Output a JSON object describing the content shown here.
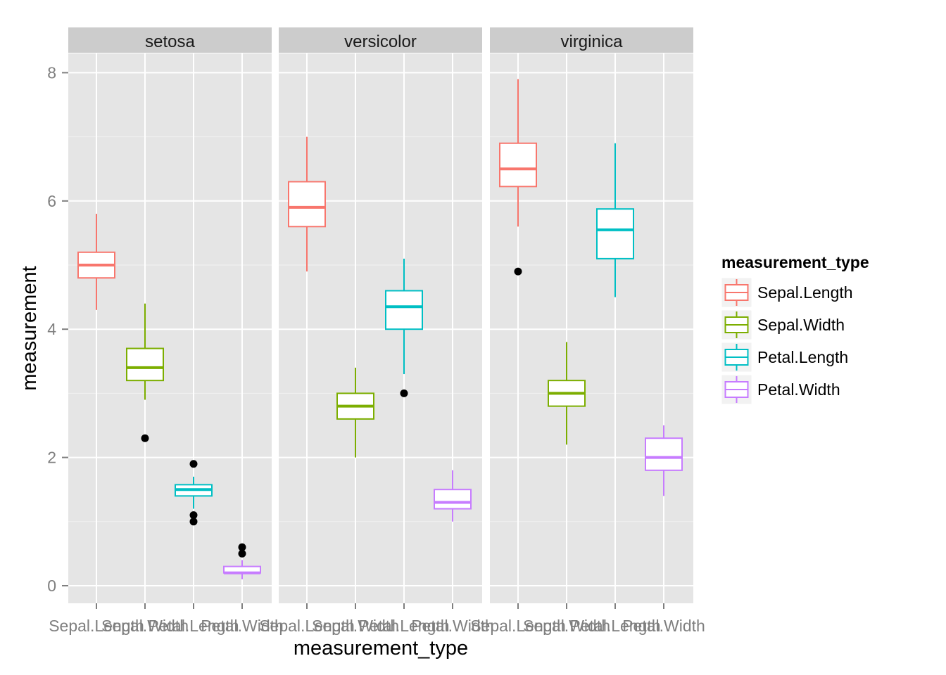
{
  "chart_data": {
    "type": "boxplot",
    "facet_by": "species",
    "facets": [
      "setosa",
      "versicolor",
      "virginica"
    ],
    "categories": [
      "Sepal.Length",
      "Sepal.Width",
      "Petal.Length",
      "Petal.Width"
    ],
    "xlabel": "measurement_type",
    "ylabel": "measurement",
    "ylim": [
      -0.25,
      8.65
    ],
    "yticks": [
      0,
      2,
      4,
      6,
      8
    ],
    "grid": true,
    "legend": {
      "title": "measurement_type",
      "placement": "right",
      "entries": [
        "Sepal.Length",
        "Sepal.Width",
        "Petal.Length",
        "Petal.Width"
      ]
    },
    "colors": {
      "Sepal.Length": "#F8766D",
      "Sepal.Width": "#7CAE00",
      "Petal.Length": "#00BFC4",
      "Petal.Width": "#C77CFF"
    },
    "data": {
      "setosa": [
        {
          "type": "Sepal.Length",
          "lower": 4.3,
          "q1": 4.8,
          "median": 5.0,
          "q3": 5.2,
          "upper": 5.8,
          "outliers": []
        },
        {
          "type": "Sepal.Width",
          "lower": 2.9,
          "q1": 3.2,
          "median": 3.4,
          "q3": 3.7,
          "upper": 4.4,
          "outliers": [
            2.3
          ]
        },
        {
          "type": "Petal.Length",
          "lower": 1.2,
          "q1": 1.4,
          "median": 1.5,
          "q3": 1.575,
          "upper": 1.7,
          "outliers": [
            1.0,
            1.1,
            1.9
          ]
        },
        {
          "type": "Petal.Width",
          "lower": 0.1,
          "q1": 0.2,
          "median": 0.2,
          "q3": 0.3,
          "upper": 0.4,
          "outliers": [
            0.5,
            0.6
          ]
        }
      ],
      "versicolor": [
        {
          "type": "Sepal.Length",
          "lower": 4.9,
          "q1": 5.6,
          "median": 5.9,
          "q3": 6.3,
          "upper": 7.0,
          "outliers": []
        },
        {
          "type": "Sepal.Width",
          "lower": 2.0,
          "q1": 2.6,
          "median": 2.8,
          "q3": 3.0,
          "upper": 3.4,
          "outliers": []
        },
        {
          "type": "Petal.Length",
          "lower": 3.3,
          "q1": 4.0,
          "median": 4.35,
          "q3": 4.6,
          "upper": 5.1,
          "outliers": [
            3.0
          ]
        },
        {
          "type": "Petal.Width",
          "lower": 1.0,
          "q1": 1.2,
          "median": 1.3,
          "q3": 1.5,
          "upper": 1.8,
          "outliers": []
        }
      ],
      "virginica": [
        {
          "type": "Sepal.Length",
          "lower": 5.6,
          "q1": 6.225,
          "median": 6.5,
          "q3": 6.9,
          "upper": 7.9,
          "outliers": [
            4.9
          ]
        },
        {
          "type": "Sepal.Width",
          "lower": 2.2,
          "q1": 2.8,
          "median": 3.0,
          "q3": 3.2,
          "upper": 3.8,
          "outliers": []
        },
        {
          "type": "Petal.Length",
          "lower": 4.5,
          "q1": 5.1,
          "median": 5.55,
          "q3": 5.875,
          "upper": 6.9,
          "outliers": []
        },
        {
          "type": "Petal.Width",
          "lower": 1.4,
          "q1": 1.8,
          "median": 2.0,
          "q3": 2.3,
          "upper": 2.5,
          "outliers": []
        }
      ]
    }
  }
}
